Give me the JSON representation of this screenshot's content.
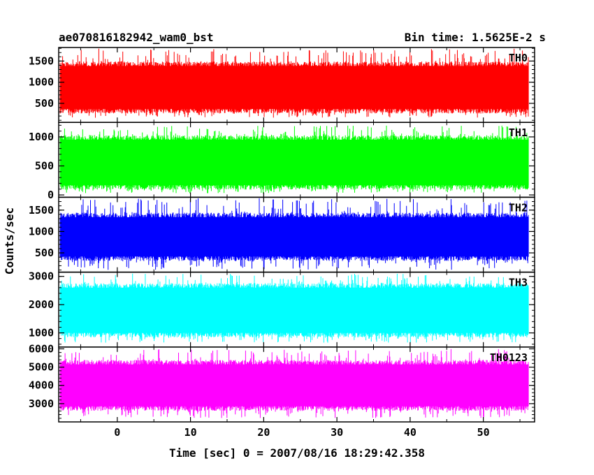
{
  "header": {
    "left_title": "ae070816182942_wam0_bst",
    "right_title": "Bin time: 1.5625E-2 s"
  },
  "chart_data": {
    "type": "line",
    "xlabel": "Time [sec] 0 = 2007/08/16 18:29:42.358",
    "ylabel": "Counts/sec",
    "xlim": [
      -8,
      57
    ],
    "x_ticks": [
      "0",
      "10",
      "20",
      "30",
      "40",
      "50"
    ],
    "x_tick_values": [
      0,
      10,
      20,
      30,
      40,
      50
    ],
    "data_xrange": [
      -7.8,
      56.2
    ],
    "bin_time_s": 0.015625,
    "panels": [
      {
        "name": "TH0",
        "color": "#ff0000",
        "ylim": [
          50,
          1820
        ],
        "y_ticks": [
          "500",
          "1000",
          "1500"
        ],
        "y_tick_values": [
          500,
          1000,
          1500
        ],
        "band": [
          300,
          1450
        ],
        "spike": [
          160,
          1800
        ]
      },
      {
        "name": "TH1",
        "color": "#00ff00",
        "ylim": [
          -40,
          1250
        ],
        "y_ticks": [
          "0",
          "500",
          "1000"
        ],
        "y_tick_values": [
          0,
          500,
          1000
        ],
        "band": [
          120,
          1000
        ],
        "spike": [
          30,
          1200
        ]
      },
      {
        "name": "TH2",
        "color": "#0000ff",
        "ylim": [
          50,
          1800
        ],
        "y_ticks": [
          "500",
          "1000",
          "1500"
        ],
        "y_tick_values": [
          500,
          1000,
          1500
        ],
        "band": [
          350,
          1400
        ],
        "spike": [
          100,
          1780
        ]
      },
      {
        "name": "TH3",
        "color": "#00ffff",
        "ylim": [
          500,
          3150
        ],
        "y_ticks": [
          "1000",
          "2000",
          "3000"
        ],
        "y_tick_values": [
          1000,
          2000,
          3000
        ],
        "band": [
          900,
          2700
        ],
        "spike": [
          650,
          3100
        ]
      },
      {
        "name": "TH0123",
        "color": "#ff00ff",
        "ylim": [
          2000,
          6100
        ],
        "y_ticks": [
          "3000",
          "4000",
          "5000",
          "6000"
        ],
        "y_tick_values": [
          3000,
          4000,
          5000,
          6000
        ],
        "band": [
          2700,
          5300
        ],
        "spike": [
          2200,
          6000
        ]
      }
    ]
  }
}
